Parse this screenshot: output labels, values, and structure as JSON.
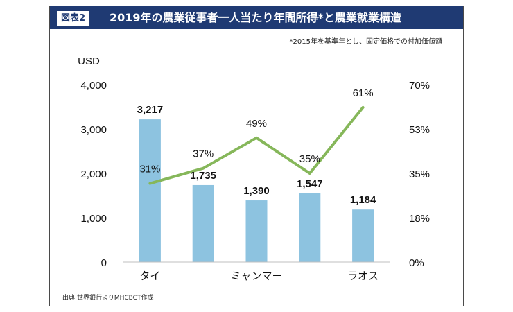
{
  "header": {
    "badge": "図表2",
    "title": "2019年の農業従事者一人当たり年間所得*と農業就業構造"
  },
  "note": "*2015年を基準年とし、固定価格での付加価値額",
  "source": "出典:世界銀行よりMHCBCT作成",
  "colors": {
    "header_bg": "#1f3a73",
    "bar": "#8dc3e0",
    "line": "#86b75a",
    "text": "#111111"
  },
  "chart_data": {
    "type": "bar+line",
    "categories": [
      "タイ",
      "",
      "ミャンマー",
      "",
      "ラオス"
    ],
    "series": [
      {
        "name": "income",
        "type": "bar",
        "axis": "left",
        "values": [
          3217,
          1735,
          1390,
          1547,
          1184
        ],
        "labels": [
          "3,217",
          "1,735",
          "1,390",
          "1,547",
          "1,184"
        ]
      },
      {
        "name": "agriculture_share",
        "type": "line",
        "axis": "right",
        "values": [
          31,
          37,
          49,
          35,
          61
        ],
        "labels": [
          "31%",
          "37%",
          "49%",
          "35%",
          "61%"
        ]
      }
    ],
    "ylabel_left": "USD",
    "ylim_left": [
      0,
      4000
    ],
    "yticks_left": [
      "0",
      "1,000",
      "2,000",
      "3,000",
      "4,000"
    ],
    "ylim_right": [
      0,
      70
    ],
    "yticks_right": [
      "0%",
      "18%",
      "35%",
      "53%",
      "70%"
    ]
  }
}
